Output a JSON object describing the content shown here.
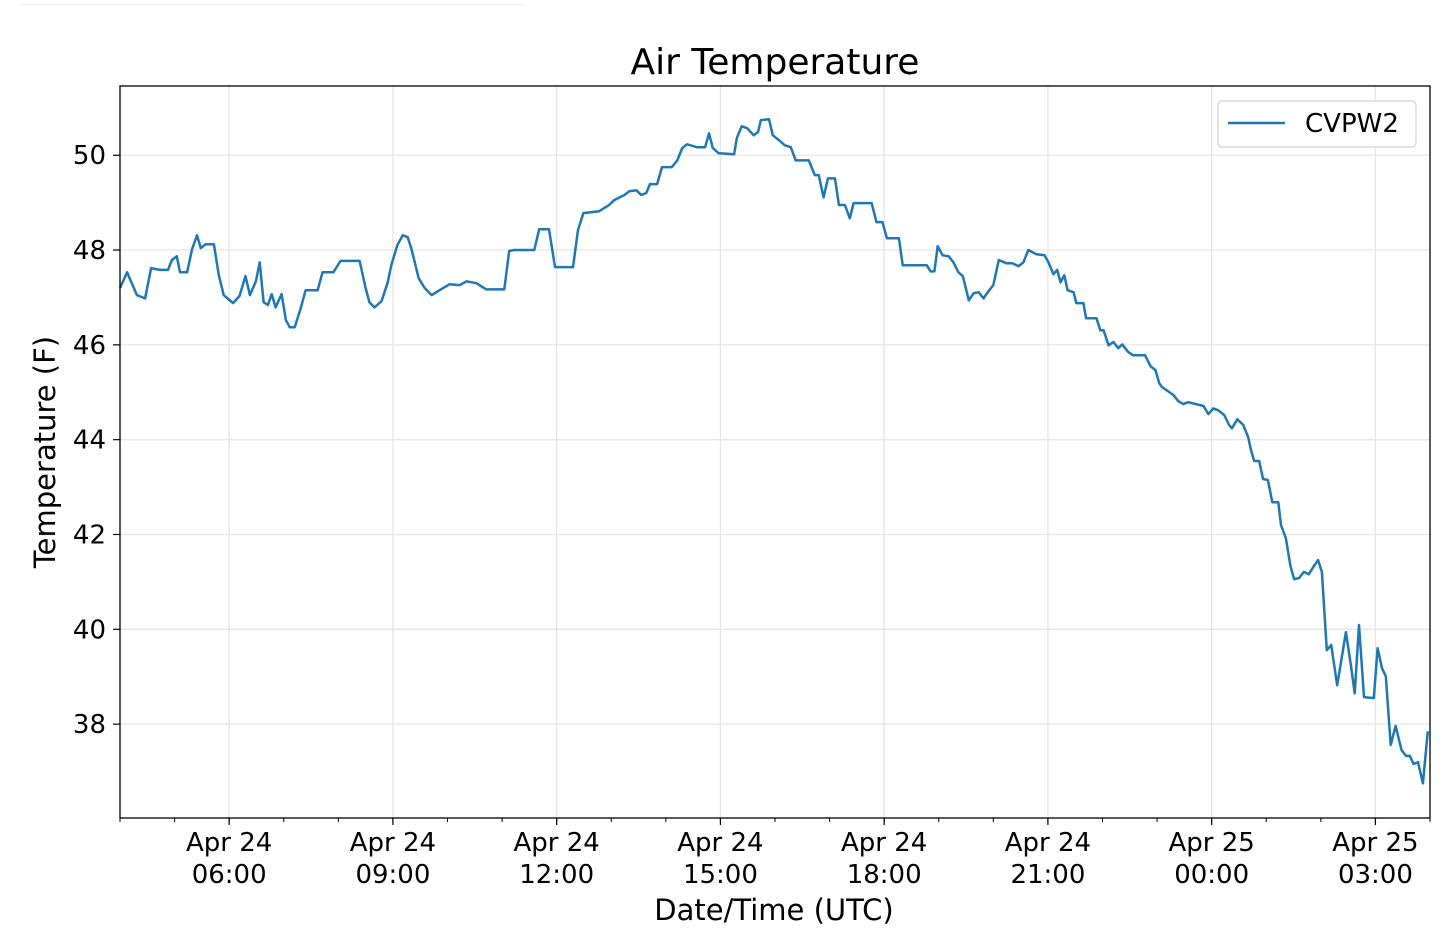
{
  "chart_data": {
    "type": "line",
    "title": "Air Temperature",
    "xlabel": "Date/Time (UTC)",
    "ylabel": "Temperature (F)",
    "x_units": "hours since Apr 24 00:00 UTC",
    "xlim": [
      4,
      28
    ],
    "ylim": [
      36.02,
      51.46
    ],
    "grid": true,
    "legend_position": "top-right",
    "yticks": [
      38,
      40,
      42,
      44,
      46,
      48,
      50
    ],
    "xticks": [
      {
        "value": 6,
        "line1": "Apr 24",
        "line2": "06:00"
      },
      {
        "value": 9,
        "line1": "Apr 24",
        "line2": "09:00"
      },
      {
        "value": 12,
        "line1": "Apr 24",
        "line2": "12:00"
      },
      {
        "value": 15,
        "line1": "Apr 24",
        "line2": "15:00"
      },
      {
        "value": 18,
        "line1": "Apr 24",
        "line2": "18:00"
      },
      {
        "value": 21,
        "line1": "Apr 24",
        "line2": "21:00"
      },
      {
        "value": 24,
        "line1": "Apr 25",
        "line2": "00:00"
      },
      {
        "value": 27,
        "line1": "Apr 25",
        "line2": "03:00"
      }
    ],
    "series": [
      {
        "name": "CVPW2",
        "color": "#1f77b4",
        "x": [
          4.0,
          4.13,
          4.31,
          4.46,
          4.57,
          4.73,
          4.88,
          4.95,
          5.04,
          5.1,
          5.23,
          5.32,
          5.41,
          5.48,
          5.57,
          5.72,
          5.81,
          5.9,
          6.07,
          6.19,
          6.3,
          6.38,
          6.49,
          6.56,
          6.63,
          6.71,
          6.78,
          6.85,
          6.96,
          7.04,
          7.11,
          7.2,
          7.31,
          7.4,
          7.62,
          7.71,
          7.91,
          8.04,
          8.39,
          8.5,
          8.57,
          8.66,
          8.79,
          8.9,
          8.97,
          9.08,
          9.18,
          9.27,
          9.34,
          9.47,
          9.58,
          9.71,
          9.85,
          10.04,
          10.22,
          10.35,
          10.53,
          10.71,
          11.04,
          11.13,
          11.22,
          11.59,
          11.68,
          11.86,
          11.97,
          12.3,
          12.39,
          12.49,
          12.78,
          12.96,
          13.05,
          13.24,
          13.33,
          13.46,
          13.55,
          13.64,
          13.71,
          13.84,
          13.93,
          14.11,
          14.21,
          14.3,
          14.39,
          14.57,
          14.72,
          14.79,
          14.86,
          14.97,
          15.25,
          15.3,
          15.39,
          15.49,
          15.61,
          15.69,
          15.74,
          15.89,
          15.96,
          16.07,
          16.18,
          16.29,
          16.38,
          16.62,
          16.73,
          16.8,
          16.89,
          16.97,
          17.1,
          17.17,
          17.28,
          17.37,
          17.44,
          17.77,
          17.86,
          17.97,
          18.05,
          18.27,
          18.34,
          18.78,
          18.85,
          18.92,
          18.98,
          19.07,
          19.18,
          19.27,
          19.36,
          19.44,
          19.55,
          19.64,
          19.73,
          19.82,
          19.91,
          20.0,
          20.1,
          20.24,
          20.35,
          20.46,
          20.55,
          20.64,
          20.79,
          20.94,
          21.01,
          21.1,
          21.17,
          21.23,
          21.3,
          21.36,
          21.47,
          21.52,
          21.65,
          21.7,
          21.89,
          21.96,
          22.02,
          22.11,
          22.2,
          22.29,
          22.36,
          22.47,
          22.56,
          22.78,
          22.88,
          22.97,
          23.04,
          23.09,
          23.3,
          23.39,
          23.48,
          23.57,
          23.85,
          23.94,
          24.03,
          24.12,
          24.23,
          24.32,
          24.37,
          24.47,
          24.58,
          24.67,
          24.72,
          24.78,
          24.87,
          24.94,
          25.03,
          25.11,
          25.22,
          25.27,
          25.36,
          25.44,
          25.51,
          25.6,
          25.69,
          25.78,
          25.87,
          25.95,
          26.02,
          26.11,
          26.19,
          26.3,
          26.46,
          26.55,
          26.62,
          26.7,
          26.79,
          26.97,
          27.04,
          27.12,
          27.19,
          27.28,
          27.37,
          27.48,
          27.56,
          27.63,
          27.7,
          27.78,
          27.87,
          27.96
        ],
        "y": [
          47.2,
          47.53,
          47.05,
          46.98,
          47.62,
          47.58,
          47.58,
          47.79,
          47.87,
          47.53,
          47.53,
          48.02,
          48.31,
          48.04,
          48.12,
          48.12,
          47.47,
          47.05,
          46.88,
          47.03,
          47.45,
          47.05,
          47.34,
          47.74,
          46.9,
          46.84,
          47.07,
          46.79,
          47.07,
          46.52,
          46.37,
          46.37,
          46.77,
          47.15,
          47.15,
          47.53,
          47.53,
          47.77,
          47.77,
          47.2,
          46.9,
          46.79,
          46.92,
          47.3,
          47.68,
          48.1,
          48.31,
          48.27,
          48.02,
          47.41,
          47.2,
          47.05,
          47.15,
          47.28,
          47.26,
          47.34,
          47.3,
          47.17,
          47.17,
          47.98,
          48.0,
          48.0,
          48.44,
          48.44,
          47.64,
          47.64,
          48.42,
          48.78,
          48.82,
          48.95,
          49.05,
          49.16,
          49.24,
          49.26,
          49.16,
          49.2,
          49.39,
          49.39,
          49.75,
          49.75,
          49.89,
          50.15,
          50.23,
          50.17,
          50.17,
          50.46,
          50.15,
          50.04,
          50.02,
          50.36,
          50.61,
          50.57,
          50.42,
          50.49,
          50.74,
          50.76,
          50.42,
          50.32,
          50.21,
          50.17,
          49.89,
          49.89,
          49.58,
          49.58,
          49.11,
          49.51,
          49.51,
          48.95,
          48.95,
          48.67,
          48.99,
          48.99,
          48.59,
          48.59,
          48.25,
          48.25,
          47.68,
          47.68,
          47.55,
          47.55,
          48.08,
          47.89,
          47.87,
          47.74,
          47.53,
          47.45,
          46.94,
          47.09,
          47.11,
          46.98,
          47.13,
          47.26,
          47.79,
          47.72,
          47.72,
          47.66,
          47.74,
          48.0,
          47.91,
          47.89,
          47.74,
          47.49,
          47.58,
          47.32,
          47.47,
          47.15,
          47.11,
          46.88,
          46.88,
          46.56,
          46.56,
          46.31,
          46.31,
          45.99,
          46.06,
          45.93,
          46.01,
          45.85,
          45.78,
          45.78,
          45.55,
          45.47,
          45.19,
          45.11,
          44.94,
          44.81,
          44.75,
          44.79,
          44.71,
          44.54,
          44.66,
          44.62,
          44.52,
          44.31,
          44.24,
          44.43,
          44.31,
          44.05,
          43.78,
          43.55,
          43.55,
          43.17,
          43.15,
          42.68,
          42.68,
          42.2,
          41.92,
          41.35,
          41.06,
          41.08,
          41.21,
          41.16,
          41.33,
          41.46,
          41.21,
          39.56,
          39.67,
          38.82,
          39.94,
          39.24,
          38.65,
          40.09,
          38.57,
          38.55,
          39.6,
          39.18,
          39.01,
          37.56,
          37.96,
          37.45,
          37.33,
          37.33,
          37.16,
          37.2,
          36.75,
          37.85
        ]
      }
    ]
  }
}
